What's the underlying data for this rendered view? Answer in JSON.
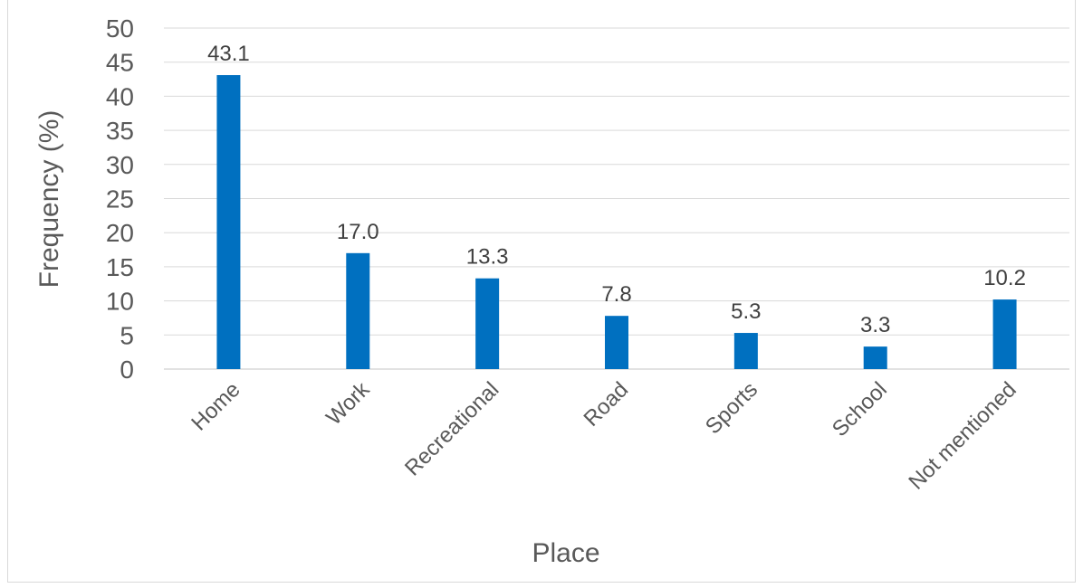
{
  "chart_data": {
    "type": "bar",
    "title": "",
    "xlabel": "Place",
    "ylabel": "Frequency (%)",
    "categories": [
      "Home",
      "Work",
      "Recreational",
      "Road",
      "Sports",
      "School",
      "Not mentioned"
    ],
    "values": [
      43.1,
      17.0,
      13.3,
      7.8,
      5.3,
      3.3,
      10.2
    ],
    "data_labels": [
      "43.1",
      "17.0",
      "13.3",
      "7.8",
      "5.3",
      "3.3",
      "10.2"
    ],
    "ylim": [
      0,
      50
    ],
    "yticks": [
      0,
      5,
      10,
      15,
      20,
      25,
      30,
      35,
      40,
      45,
      50
    ],
    "grid": true,
    "legend": "none",
    "bar_color": "#0070c0"
  }
}
